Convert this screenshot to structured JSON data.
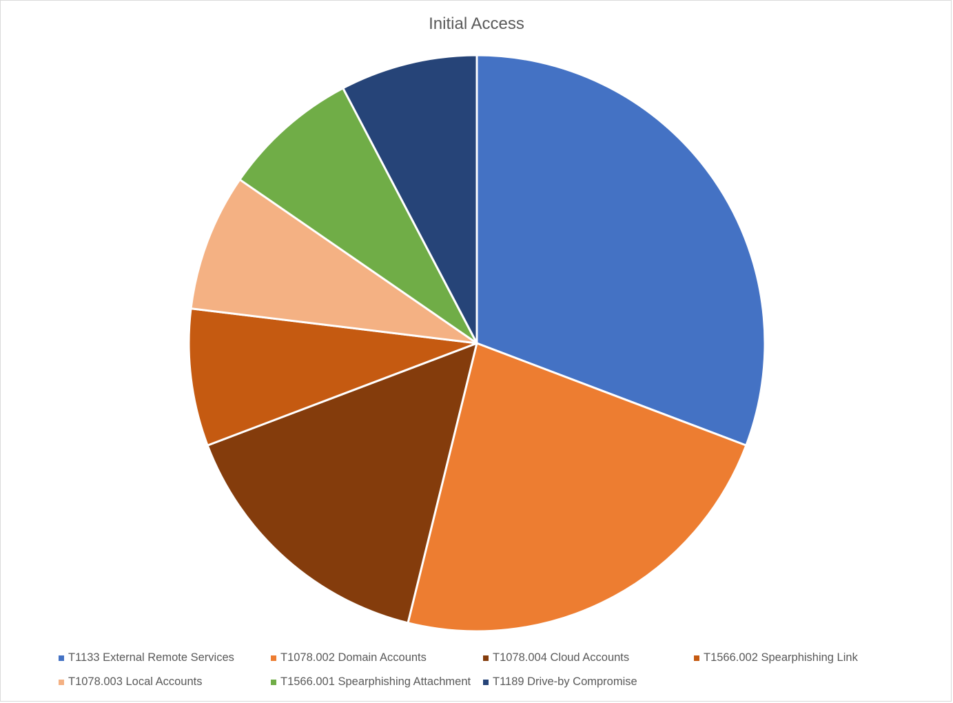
{
  "chart_data": {
    "type": "pie",
    "title": "Initial Access",
    "series": [
      {
        "name": "T1133 External Remote Services",
        "value": 4,
        "color": "#4472C4"
      },
      {
        "name": "T1078.002 Domain Accounts",
        "value": 3,
        "color": "#ED7D31"
      },
      {
        "name": "T1078.004 Cloud Accounts",
        "value": 2,
        "color": "#843C0C"
      },
      {
        "name": "T1566.002 Spearphishing Link",
        "value": 1,
        "color": "#C55A11"
      },
      {
        "name": "T1078.003 Local Accounts",
        "value": 1,
        "color": "#F4B183"
      },
      {
        "name": "T1566.001 Spearphishing Attachment",
        "value": 1,
        "color": "#70AD47"
      },
      {
        "name": "T1189 Drive-by Compromise",
        "value": 1,
        "color": "#264478"
      }
    ],
    "legend_position": "bottom"
  }
}
